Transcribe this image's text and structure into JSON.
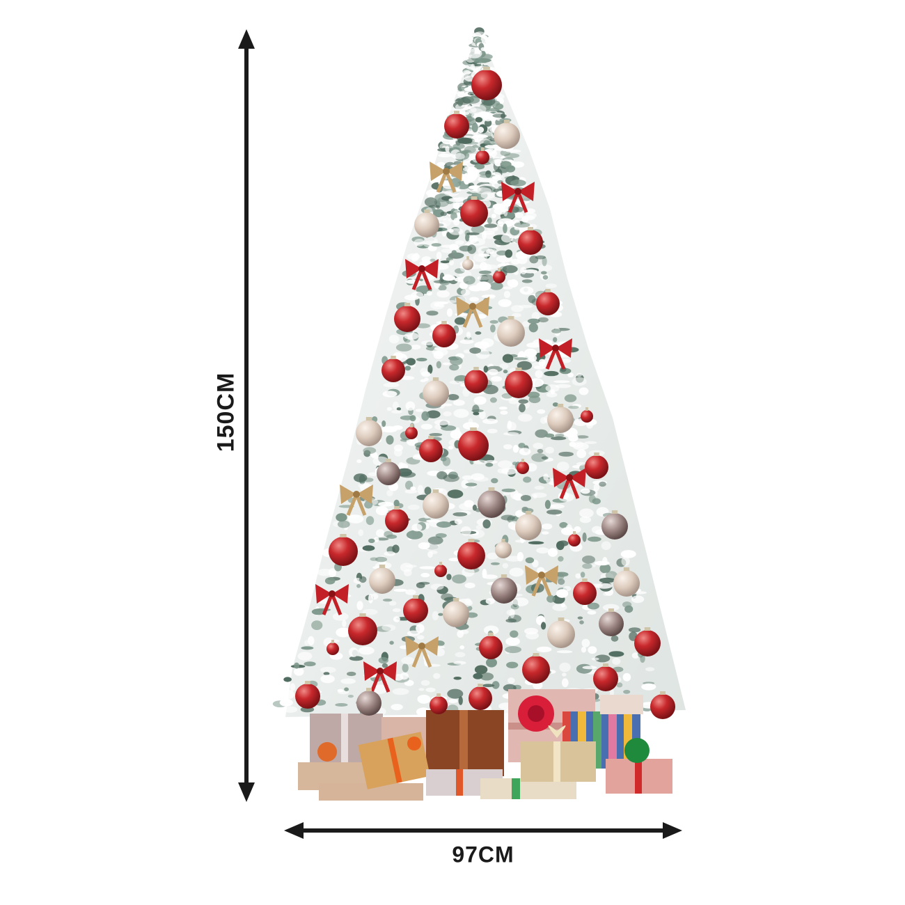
{
  "dimensions": {
    "height_label": "150CM",
    "width_label": "97CM"
  },
  "colors": {
    "arrow": "#1a1a1a",
    "foliage_white": "#eef1f0",
    "foliage_green": "#6f8a7e",
    "ornament_red": "#c0262b",
    "ornament_champagne": "#dccbbd",
    "ornament_taupe": "#9d8683",
    "bow_gold": "#c7a16a"
  },
  "icons": {
    "height_arrow": "double-headed-vertical-arrow-icon",
    "width_arrow": "double-headed-horizontal-arrow-icon"
  }
}
